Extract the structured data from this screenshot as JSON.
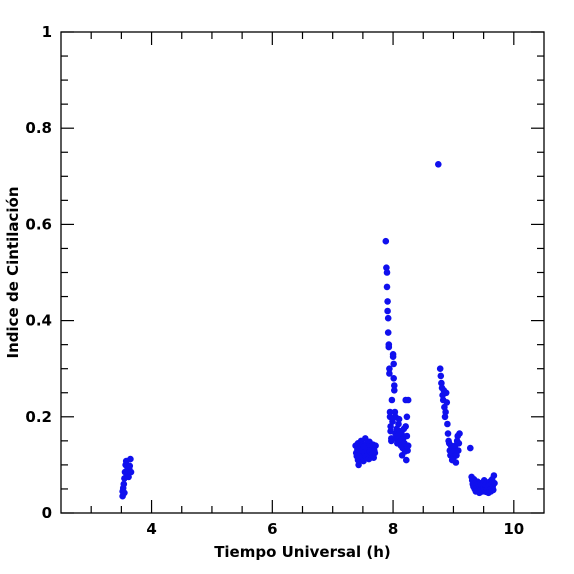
{
  "chart_data": {
    "type": "scatter",
    "title": "",
    "xlabel": "Tiempo Universal (h)",
    "ylabel": "Indice de Cintilación",
    "xlim": [
      2.5,
      10.5
    ],
    "ylim": [
      0,
      1
    ],
    "x_ticks": [
      4,
      6,
      8,
      10
    ],
    "y_ticks": [
      0,
      0.2,
      0.4,
      0.6,
      0.8,
      1
    ],
    "x_tick_labels": [
      "4",
      "6",
      "8",
      "10"
    ],
    "y_tick_labels": [
      "0",
      "0.2",
      "0.4",
      "0.6",
      "0.8",
      "1"
    ],
    "grid": false,
    "marker_color": "#1010ee",
    "series": [
      {
        "points": [
          [
            3.52,
            0.035
          ],
          [
            3.52,
            0.045
          ],
          [
            3.53,
            0.052
          ],
          [
            3.54,
            0.06
          ],
          [
            3.55,
            0.042
          ],
          [
            3.55,
            0.072
          ],
          [
            3.56,
            0.085
          ],
          [
            3.57,
            0.1
          ],
          [
            3.58,
            0.108
          ],
          [
            3.59,
            0.078
          ],
          [
            3.6,
            0.09
          ],
          [
            3.61,
            0.082
          ],
          [
            3.62,
            0.075
          ],
          [
            3.63,
            0.092
          ],
          [
            3.64,
            0.098
          ],
          [
            3.65,
            0.112
          ],
          [
            3.66,
            0.085
          ],
          [
            7.38,
            0.14
          ],
          [
            7.39,
            0.125
          ],
          [
            7.4,
            0.118
          ],
          [
            7.41,
            0.132
          ],
          [
            7.42,
            0.11
          ],
          [
            7.42,
            0.145
          ],
          [
            7.43,
            0.1
          ],
          [
            7.44,
            0.128
          ],
          [
            7.45,
            0.122
          ],
          [
            7.46,
            0.135
          ],
          [
            7.47,
            0.15
          ],
          [
            7.48,
            0.115
          ],
          [
            7.49,
            0.13
          ],
          [
            7.5,
            0.142
          ],
          [
            7.51,
            0.108
          ],
          [
            7.52,
            0.138
          ],
          [
            7.53,
            0.125
          ],
          [
            7.54,
            0.155
          ],
          [
            7.55,
            0.118
          ],
          [
            7.56,
            0.13
          ],
          [
            7.57,
            0.145
          ],
          [
            7.58,
            0.12
          ],
          [
            7.59,
            0.135
          ],
          [
            7.6,
            0.112
          ],
          [
            7.61,
            0.148
          ],
          [
            7.62,
            0.128
          ],
          [
            7.63,
            0.138
          ],
          [
            7.64,
            0.118
          ],
          [
            7.65,
            0.132
          ],
          [
            7.66,
            0.122
          ],
          [
            7.67,
            0.142
          ],
          [
            7.68,
            0.115
          ],
          [
            7.69,
            0.13
          ],
          [
            7.7,
            0.125
          ],
          [
            7.71,
            0.14
          ],
          [
            7.88,
            0.565
          ],
          [
            7.89,
            0.51
          ],
          [
            7.9,
            0.5
          ],
          [
            7.9,
            0.47
          ],
          [
            7.91,
            0.44
          ],
          [
            7.91,
            0.42
          ],
          [
            7.92,
            0.405
          ],
          [
            7.92,
            0.375
          ],
          [
            7.93,
            0.35
          ],
          [
            7.93,
            0.345
          ],
          [
            7.94,
            0.3
          ],
          [
            7.94,
            0.29
          ],
          [
            7.95,
            0.21
          ],
          [
            7.95,
            0.2
          ],
          [
            7.96,
            0.18
          ],
          [
            7.96,
            0.17
          ],
          [
            7.97,
            0.155
          ],
          [
            7.97,
            0.15
          ],
          [
            7.98,
            0.235
          ],
          [
            7.99,
            0.19
          ],
          [
            8.0,
            0.33
          ],
          [
            8.0,
            0.325
          ],
          [
            8.01,
            0.31
          ],
          [
            8.01,
            0.28
          ],
          [
            8.02,
            0.265
          ],
          [
            8.02,
            0.255
          ],
          [
            8.03,
            0.21
          ],
          [
            8.04,
            0.2
          ],
          [
            8.04,
            0.165
          ],
          [
            8.05,
            0.155
          ],
          [
            8.06,
            0.175
          ],
          [
            8.07,
            0.145
          ],
          [
            8.08,
            0.16
          ],
          [
            8.09,
            0.185
          ],
          [
            8.1,
            0.195
          ],
          [
            8.11,
            0.17
          ],
          [
            8.12,
            0.15
          ],
          [
            8.13,
            0.14
          ],
          [
            8.14,
            0.165
          ],
          [
            8.15,
            0.12
          ],
          [
            8.16,
            0.135
          ],
          [
            8.17,
            0.155
          ],
          [
            8.18,
            0.175
          ],
          [
            8.19,
            0.145
          ],
          [
            8.2,
            0.128
          ],
          [
            8.21,
            0.235
          ],
          [
            8.21,
            0.18
          ],
          [
            8.22,
            0.11
          ],
          [
            8.23,
            0.2
          ],
          [
            8.23,
            0.16
          ],
          [
            8.24,
            0.13
          ],
          [
            8.25,
            0.235
          ],
          [
            8.25,
            0.14
          ],
          [
            8.75,
            0.725
          ],
          [
            8.78,
            0.3
          ],
          [
            8.79,
            0.285
          ],
          [
            8.8,
            0.27
          ],
          [
            8.81,
            0.26
          ],
          [
            8.82,
            0.245
          ],
          [
            8.83,
            0.235
          ],
          [
            8.84,
            0.255
          ],
          [
            8.85,
            0.22
          ],
          [
            8.86,
            0.2
          ],
          [
            8.87,
            0.21
          ],
          [
            8.88,
            0.25
          ],
          [
            8.89,
            0.23
          ],
          [
            8.9,
            0.185
          ],
          [
            8.91,
            0.165
          ],
          [
            8.92,
            0.15
          ],
          [
            8.93,
            0.145
          ],
          [
            8.94,
            0.13
          ],
          [
            8.95,
            0.12
          ],
          [
            8.96,
            0.14
          ],
          [
            8.97,
            0.125
          ],
          [
            8.98,
            0.11
          ],
          [
            8.99,
            0.135
          ],
          [
            9.0,
            0.115
          ],
          [
            9.01,
            0.128
          ],
          [
            9.02,
            0.118
          ],
          [
            9.03,
            0.14
          ],
          [
            9.04,
            0.105
          ],
          [
            9.05,
            0.12
          ],
          [
            9.06,
            0.15
          ],
          [
            9.07,
            0.16
          ],
          [
            9.08,
            0.13
          ],
          [
            9.09,
            0.145
          ],
          [
            9.1,
            0.165
          ],
          [
            9.28,
            0.135
          ],
          [
            9.3,
            0.075
          ],
          [
            9.31,
            0.068
          ],
          [
            9.32,
            0.06
          ],
          [
            9.33,
            0.055
          ],
          [
            9.34,
            0.07
          ],
          [
            9.35,
            0.05
          ],
          [
            9.36,
            0.062
          ],
          [
            9.37,
            0.045
          ],
          [
            9.38,
            0.058
          ],
          [
            9.39,
            0.052
          ],
          [
            9.4,
            0.065
          ],
          [
            9.41,
            0.048
          ],
          [
            9.42,
            0.06
          ],
          [
            9.43,
            0.042
          ],
          [
            9.44,
            0.055
          ],
          [
            9.45,
            0.062
          ],
          [
            9.46,
            0.05
          ],
          [
            9.47,
            0.058
          ],
          [
            9.48,
            0.045
          ],
          [
            9.49,
            0.06
          ],
          [
            9.5,
            0.052
          ],
          [
            9.51,
            0.068
          ],
          [
            9.52,
            0.048
          ],
          [
            9.53,
            0.058
          ],
          [
            9.54,
            0.044
          ],
          [
            9.55,
            0.062
          ],
          [
            9.56,
            0.05
          ],
          [
            9.57,
            0.055
          ],
          [
            9.58,
            0.042
          ],
          [
            9.59,
            0.058
          ],
          [
            9.6,
            0.065
          ],
          [
            9.61,
            0.05
          ],
          [
            9.62,
            0.045
          ],
          [
            9.63,
            0.06
          ],
          [
            9.64,
            0.07
          ],
          [
            9.65,
            0.055
          ],
          [
            9.66,
            0.048
          ],
          [
            9.67,
            0.078
          ],
          [
            9.68,
            0.062
          ]
        ]
      }
    ]
  }
}
